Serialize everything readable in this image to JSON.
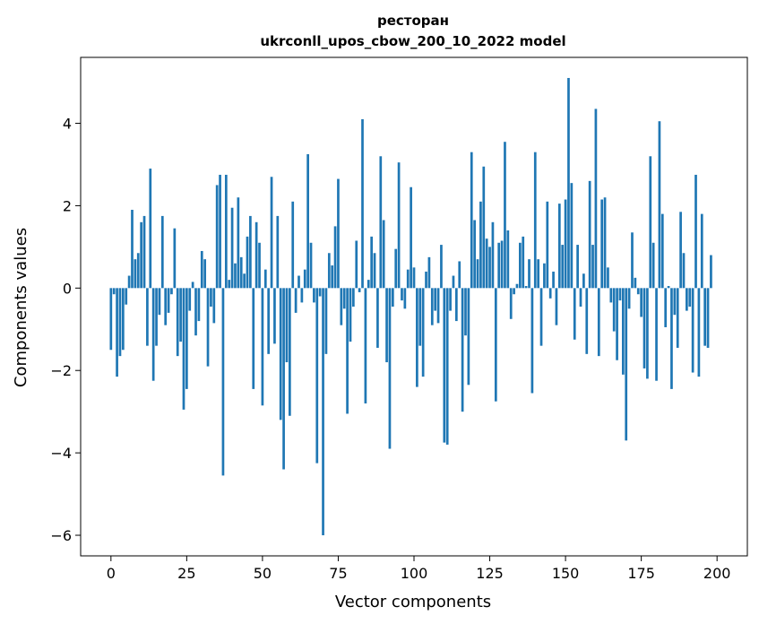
{
  "chart_data": {
    "type": "bar",
    "title": "ресторан",
    "subtitle": "ukrconll_upos_cbow_200_10_2022 model",
    "xlabel": "Vector components",
    "ylabel": "Components values",
    "xlim": [
      -10,
      210
    ],
    "ylim": [
      -6.5,
      5.6
    ],
    "xticks": [
      0,
      25,
      50,
      75,
      100,
      125,
      150,
      175,
      200
    ],
    "yticks": [
      -6,
      -4,
      -2,
      0,
      2,
      4
    ],
    "ytick_labels": [
      "−6",
      "−4",
      "−2",
      "0",
      "2",
      "4"
    ],
    "grid": false,
    "bar_color": "#1f77b4",
    "values": [
      -1.5,
      -0.15,
      -2.15,
      -1.65,
      -1.5,
      -0.4,
      0.3,
      1.9,
      0.7,
      0.85,
      1.6,
      1.75,
      -1.4,
      2.9,
      -2.25,
      -1.4,
      -0.65,
      1.75,
      -0.9,
      -0.6,
      -0.15,
      1.45,
      -1.65,
      -1.3,
      -2.95,
      -2.45,
      -0.55,
      0.15,
      -1.15,
      -0.8,
      0.9,
      0.7,
      -1.9,
      -0.45,
      -0.85,
      2.5,
      2.75,
      -4.55,
      2.75,
      0.2,
      1.95,
      0.6,
      2.2,
      0.75,
      0.35,
      1.25,
      1.75,
      -2.45,
      1.6,
      1.1,
      -2.85,
      0.45,
      -1.6,
      2.7,
      -1.35,
      1.75,
      -3.2,
      -4.4,
      -1.8,
      -3.1,
      2.1,
      -0.6,
      0.3,
      -0.35,
      0.45,
      3.25,
      1.1,
      -0.35,
      -4.25,
      -0.2,
      -6.0,
      -1.6,
      0.85,
      0.55,
      1.5,
      2.65,
      -0.9,
      -0.5,
      -3.05,
      -1.3,
      -0.45,
      1.15,
      -0.1,
      4.1,
      -2.8,
      0.2,
      1.25,
      0.85,
      -1.45,
      3.2,
      1.65,
      -1.8,
      -3.9,
      -0.45,
      0.95,
      3.05,
      -0.3,
      -0.5,
      0.45,
      2.45,
      0.5,
      -2.4,
      -1.4,
      -2.15,
      0.4,
      0.75,
      -0.9,
      -0.55,
      -0.85,
      1.05,
      -3.75,
      -3.8,
      -0.55,
      0.3,
      -0.8,
      0.65,
      -3.0,
      -1.15,
      -2.35,
      3.3,
      1.65,
      0.7,
      2.1,
      2.95,
      1.2,
      1.0,
      1.6,
      -2.75,
      1.1,
      1.15,
      3.55,
      1.4,
      -0.75,
      -0.15,
      0.1,
      1.1,
      1.25,
      0.05,
      0.7,
      -2.55,
      3.3,
      0.7,
      -1.4,
      0.6,
      2.1,
      -0.25,
      0.4,
      -0.9,
      2.05,
      1.05,
      2.15,
      5.1,
      2.55,
      -1.25,
      1.05,
      -0.45,
      0.35,
      -1.6,
      2.6,
      1.05,
      4.35,
      -1.65,
      2.15,
      2.2,
      0.5,
      -0.35,
      -1.05,
      -1.75,
      -0.3,
      -2.1,
      -3.7,
      -0.5,
      1.35,
      0.25,
      -0.15,
      -0.7,
      -1.95,
      -2.2,
      3.2,
      1.1,
      -2.25,
      4.05,
      1.8,
      -0.95,
      0.05,
      -2.45,
      -0.65,
      -1.45,
      1.85,
      0.85,
      -0.55,
      -0.45,
      -2.05,
      2.75,
      -2.15,
      1.8,
      -1.4,
      -1.45,
      0.8
    ]
  }
}
